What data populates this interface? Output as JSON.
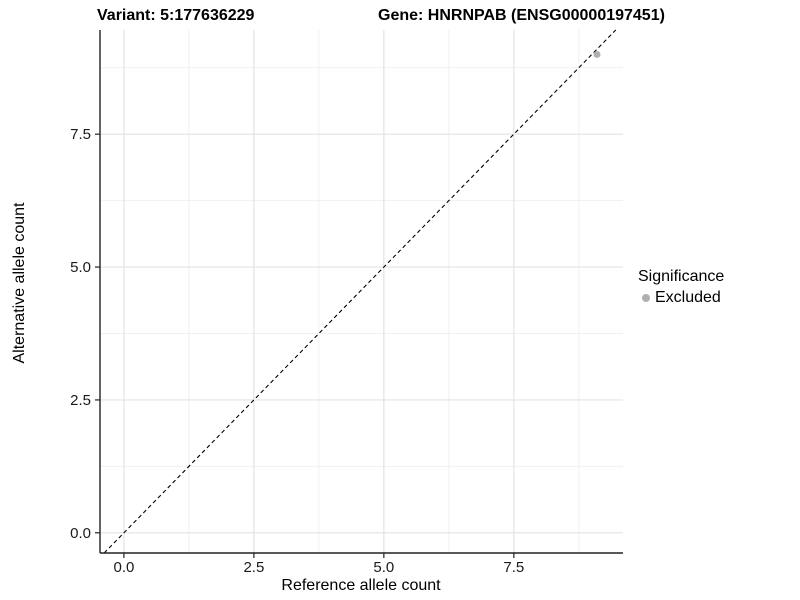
{
  "chart_data": {
    "type": "scatter",
    "title_left": "Variant: 5:177636229",
    "title_right": "Gene: HNRNPAB (ENSG00000197451)",
    "xlabel": "Reference allele count",
    "ylabel": "Alternative allele count",
    "xlim": [
      -0.46,
      9.6
    ],
    "ylim": [
      -0.38,
      9.46
    ],
    "xticks": [
      0,
      2.5,
      5,
      7.5
    ],
    "yticks": [
      0,
      2.5,
      5,
      7.5
    ],
    "xtick_labels": [
      "0.0",
      "2.5",
      "5.0",
      "7.5"
    ],
    "ytick_labels": [
      "0.0",
      "2.5",
      "5.0",
      "7.5"
    ],
    "grid": true,
    "legend": {
      "title": "Significance",
      "position": "right",
      "items": [
        {
          "label": "Excluded",
          "color": "#b0b0b0"
        }
      ]
    },
    "series": [
      {
        "name": "Excluded",
        "color": "#b0b0b0",
        "points": [
          {
            "x": 9.1,
            "y": 9.0
          }
        ]
      }
    ],
    "reference_line": {
      "style": "dashed",
      "slope": 1,
      "intercept": 0,
      "color": "#000000"
    },
    "colors": {
      "grid_major": "#e3e3e3",
      "grid_minor": "#f0f0f0",
      "axis_line": "#222222",
      "tick_label": "#1a1a1a"
    }
  }
}
